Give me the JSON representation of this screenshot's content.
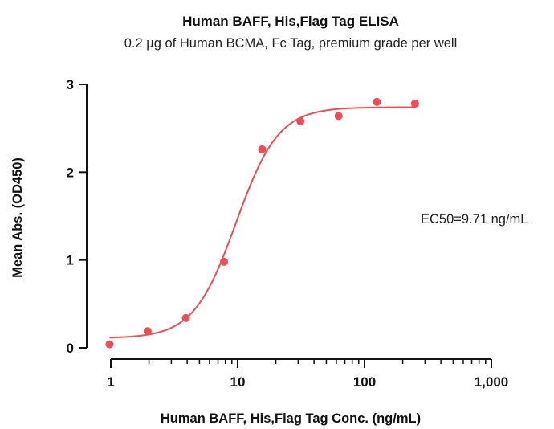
{
  "chart_data": {
    "type": "scatter",
    "title": "Human BAFF, His,Flag Tag ELISA",
    "subtitle": "0.2 µg of Human BCMA, Fc Tag, premium grade per well",
    "xlabel": "Human BAFF, His,Flag Tag Conc. (ng/mL)",
    "ylabel": "Mean Abs. (OD450)",
    "xscale": "log",
    "xlim": [
      0.75,
      1000
    ],
    "ylim": [
      0,
      3
    ],
    "x_ticks": [
      1,
      10,
      100,
      1000
    ],
    "x_tick_labels": [
      "1",
      "10",
      "100",
      "1,000"
    ],
    "y_ticks": [
      0,
      1,
      2,
      3
    ],
    "y_tick_labels": [
      "0",
      "1",
      "2",
      "3"
    ],
    "grid": false,
    "annotation": "EC50=9.71 ng/mL",
    "colors": {
      "series": "#ee4d55",
      "axis": "#111111"
    },
    "series": [
      {
        "type": "scatter",
        "x": [
          0.977,
          1.95,
          3.91,
          7.81,
          15.6,
          31.25,
          62.5,
          125,
          250
        ],
        "y": [
          0.04,
          0.19,
          0.34,
          0.98,
          2.26,
          2.58,
          2.64,
          2.8,
          2.78
        ]
      }
    ],
    "fit": {
      "model": "4PL",
      "bottom": 0.11,
      "top": 2.74,
      "ec50": 9.71,
      "hill": 2.6,
      "x_range": [
        0.977,
        250
      ]
    }
  }
}
